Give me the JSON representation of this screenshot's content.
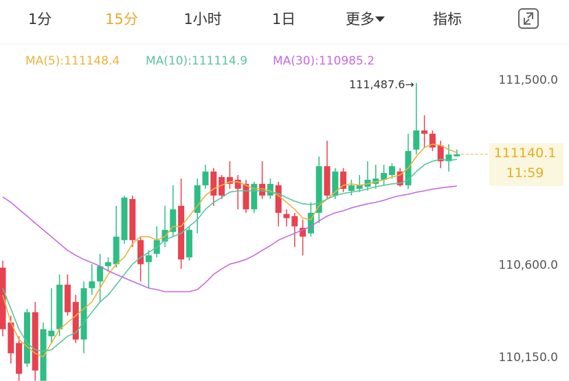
{
  "tabs": [
    "1分",
    "15分",
    "1小时",
    "1日",
    "更多",
    "指标"
  ],
  "active_tab": 1,
  "chart_data": {
    "type": "candlestick",
    "open": [
      110588,
      110321,
      110221,
      110121,
      110371,
      110037,
      110254,
      110288,
      110505,
      110421,
      110238,
      110488,
      110521,
      110595,
      110605,
      110722,
      110922,
      110722,
      110615,
      110655,
      110715,
      110762,
      110889,
      110638,
      110855,
      110989,
      111056,
      111029,
      111029,
      111016,
      110996,
      110872,
      110996,
      110939,
      110989,
      110849,
      110839,
      110782,
      110755,
      110855,
      111082,
      110939,
      111056,
      110962,
      110972,
      110982,
      110996,
      111016,
      111039,
      111056,
      110989,
      111163,
      111256,
      111240,
      111183,
      111106,
      111130
    ],
    "high": [
      110622,
      110354,
      110254,
      110388,
      110421,
      110321,
      110488,
      110555,
      110555,
      110455,
      110521,
      110605,
      110655,
      110638,
      110889,
      110939,
      110939,
      110739,
      110672,
      110789,
      110889,
      110989,
      111022,
      110789,
      111022,
      111089,
      111073,
      111039,
      111106,
      111039,
      111016,
      111006,
      111106,
      111022,
      111006,
      110872,
      110855,
      110822,
      110906,
      111129,
      111206,
      111073,
      111073,
      111016,
      111039,
      111106,
      111089,
      111089,
      111096,
      111073,
      111240,
      111487.6,
      111330,
      111256,
      111206,
      111189,
      111163
    ],
    "low": [
      110254,
      110121,
      110037,
      110104,
      110037,
      110037,
      110221,
      110254,
      110354,
      110221,
      110171,
      110455,
      110421,
      110572,
      110588,
      110705,
      110688,
      110521,
      110488,
      110638,
      110688,
      110739,
      110582,
      110622,
      110755,
      110972,
      110889,
      110922,
      110972,
      110872,
      110855,
      110855,
      110922,
      110922,
      110789,
      110789,
      110688,
      110648,
      110739,
      110805,
      110922,
      110922,
      110956,
      110939,
      110956,
      110962,
      110972,
      110989,
      111022,
      110982,
      110972,
      111139,
      111173,
      111156,
      111073,
      111056,
      111129
    ],
    "close": [
      110288,
      110171,
      110071,
      110371,
      110087,
      110288,
      110281,
      110505,
      110371,
      110238,
      110488,
      110521,
      110595,
      110615,
      110739,
      110929,
      110722,
      110605,
      110648,
      110722,
      110772,
      110872,
      110628,
      110772,
      110989,
      111056,
      110939,
      110939,
      110996,
      110972,
      110872,
      110996,
      110939,
      110996,
      110855,
      110829,
      110789,
      110739,
      110855,
      111082,
      110939,
      111056,
      110972,
      110989,
      110989,
      111016,
      111022,
      111049,
      111082,
      110989,
      111156,
      111256,
      111240,
      111173,
      111106,
      111139,
      111140.1
    ],
    "up_color": "#2ebd85",
    "down_color": "#e8414f",
    "series": [
      {
        "name": "MA(5):111148.4",
        "color": "#e9b43c",
        "values": [
          110455,
          110321,
          110238,
          110204,
          110171,
          110154,
          110221,
          110288,
          110321,
          110354,
          110388,
          110421,
          110488,
          110555,
          110605,
          110638,
          110705,
          110739,
          110739,
          110722,
          110739,
          110789,
          110789,
          110839,
          110889,
          110939,
          110972,
          110989,
          111006,
          111006,
          110989,
          110972,
          110972,
          110962,
          110939,
          110906,
          110872,
          110829,
          110822,
          110889,
          110922,
          110956,
          110989,
          110996,
          110989,
          110996,
          111006,
          111016,
          111029,
          111039,
          111073,
          111129,
          111173,
          111189,
          111183,
          111163,
          111148.4
        ]
      },
      {
        "name": "MA(10):111114.9",
        "color": "#5cc39e",
        "values": [
          110488,
          110388,
          110288,
          110221,
          110188,
          110181,
          110188,
          110221,
          110254,
          110271,
          110321,
          110371,
          110421,
          110455,
          110505,
          110555,
          110605,
          110638,
          110662,
          110688,
          110722,
          110739,
          110755,
          110789,
          110822,
          110872,
          110906,
          110929,
          110956,
          110962,
          110962,
          110962,
          110962,
          110956,
          110949,
          110929,
          110912,
          110899,
          110895,
          110902,
          110922,
          110939,
          110949,
          110956,
          110962,
          110972,
          110982,
          110989,
          110996,
          110999,
          111016,
          111056,
          111089,
          111106,
          111116,
          111110,
          111114.9
        ]
      },
      {
        "name": "MA(30):110985.2",
        "color": "#c46ae0",
        "values": [
          110932,
          110906,
          110872,
          110839,
          110805,
          110772,
          110739,
          110705,
          110672,
          110648,
          110628,
          110612,
          110595,
          110572,
          110555,
          110538,
          110521,
          110505,
          110488,
          110481,
          110471,
          110471,
          110471,
          110471,
          110481,
          110515,
          110555,
          110582,
          110605,
          110615,
          110628,
          110648,
          110672,
          110695,
          110722,
          110739,
          110755,
          110772,
          110789,
          110815,
          110839,
          110855,
          110865,
          110879,
          110889,
          110899,
          110906,
          110916,
          110929,
          110939,
          110945,
          110955,
          110962,
          110970,
          110976,
          110981,
          110985.2
        ]
      }
    ],
    "ylim": [
      110036,
      111557
    ],
    "yticks": [
      {
        "value": 111500,
        "label": "111,500.0"
      },
      {
        "value": 110600,
        "label": "110,600.0"
      },
      {
        "value": 110150,
        "label": "110,150.0"
      }
    ],
    "annotations": [
      {
        "text": "111,487.6→"
      }
    ],
    "last_price": {
      "value": 111140.1,
      "time": "11:59"
    }
  }
}
